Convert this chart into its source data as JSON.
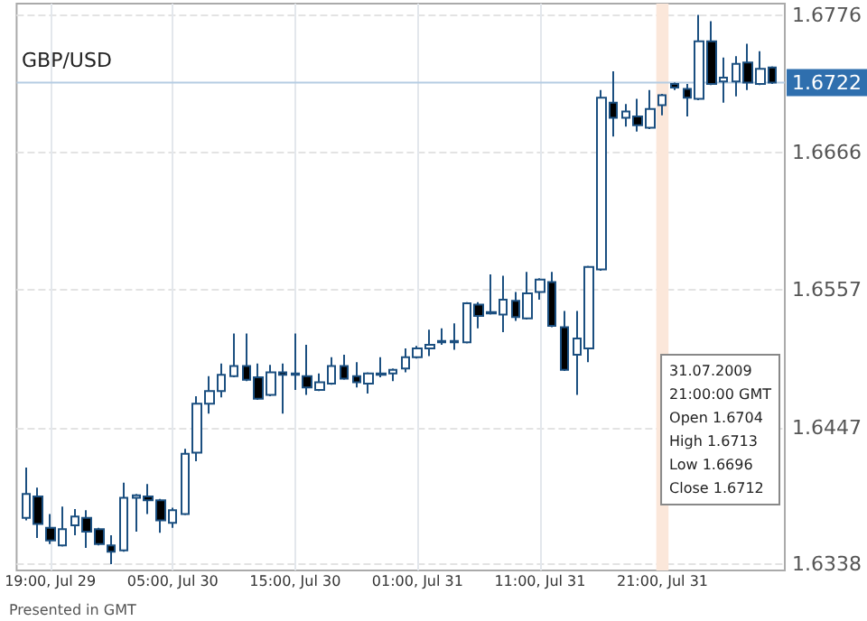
{
  "chart_data": {
    "type": "candlestick",
    "title": "GBP/USD",
    "color": "#1b4f80",
    "x": [
      "2009-07-29T17:00",
      "2009-07-29T18:00",
      "2009-07-29T19:00",
      "2009-07-29T20:00",
      "2009-07-29T21:00",
      "2009-07-29T22:00",
      "2009-07-29T23:00",
      "2009-07-30T00:00",
      "2009-07-30T01:00",
      "2009-07-30T02:00",
      "2009-07-30T03:00",
      "2009-07-30T04:00",
      "2009-07-30T05:00",
      "2009-07-30T06:00",
      "2009-07-30T07:00",
      "2009-07-30T08:00",
      "2009-07-30T09:00",
      "2009-07-30T10:00",
      "2009-07-30T11:00",
      "2009-07-30T12:00",
      "2009-07-30T13:00",
      "2009-07-30T14:00",
      "2009-07-30T15:00",
      "2009-07-30T16:00",
      "2009-07-30T17:00",
      "2009-07-30T18:00",
      "2009-07-30T19:00",
      "2009-07-30T20:00",
      "2009-07-30T21:00",
      "2009-07-30T22:00",
      "2009-07-30T23:00",
      "2009-07-31T00:00",
      "2009-07-31T01:00",
      "2009-07-31T02:00",
      "2009-07-31T03:00",
      "2009-07-31T04:00",
      "2009-07-31T05:00",
      "2009-07-31T06:00",
      "2009-07-31T07:00",
      "2009-07-31T08:00",
      "2009-07-31T09:00",
      "2009-07-31T10:00",
      "2009-07-31T11:00",
      "2009-07-31T12:00",
      "2009-07-31T13:00",
      "2009-07-31T14:00",
      "2009-07-31T15:00",
      "2009-07-31T16:00",
      "2009-07-31T17:00",
      "2009-07-31T18:00",
      "2009-07-31T19:00",
      "2009-07-31T20:00",
      "2009-07-31T21:00",
      "2009-07-31T22:00",
      "2009-07-31T23:00",
      "2009-08-01T00:00",
      "2009-08-01T01:00",
      "2009-08-01T02:00",
      "2009-08-01T03:00",
      "2009-08-01T04:00",
      "2009-08-01T05:00",
      "2009-08-01T06:00"
    ],
    "ohlc": [
      [
        1.6375,
        1.6415,
        1.6373,
        1.6394
      ],
      [
        1.6392,
        1.6399,
        1.6359,
        1.637
      ],
      [
        1.6367,
        1.6378,
        1.6354,
        1.6357
      ],
      [
        1.6353,
        1.6384,
        1.6352,
        1.6366
      ],
      [
        1.6369,
        1.6382,
        1.6361,
        1.6376
      ],
      [
        1.6375,
        1.6381,
        1.6351,
        1.6364
      ],
      [
        1.6366,
        1.6367,
        1.6353,
        1.6354
      ],
      [
        1.6353,
        1.6361,
        1.6338,
        1.6348
      ],
      [
        1.6349,
        1.6403,
        1.6348,
        1.6391
      ],
      [
        1.6391,
        1.6394,
        1.6364,
        1.6393
      ],
      [
        1.6392,
        1.6402,
        1.6378,
        1.6389
      ],
      [
        1.6389,
        1.639,
        1.6363,
        1.6373
      ],
      [
        1.6371,
        1.6383,
        1.6367,
        1.6381
      ],
      [
        1.6378,
        1.643,
        1.6377,
        1.6426
      ],
      [
        1.6427,
        1.6472,
        1.642,
        1.6466
      ],
      [
        1.6466,
        1.6488,
        1.6458,
        1.6476
      ],
      [
        1.6476,
        1.6498,
        1.6471,
        1.6489
      ],
      [
        1.6488,
        1.6522,
        1.6487,
        1.6496
      ],
      [
        1.6496,
        1.6522,
        1.6484,
        1.6485
      ],
      [
        1.6487,
        1.6498,
        1.6469,
        1.647
      ],
      [
        1.6473,
        1.6497,
        1.6472,
        1.6491
      ],
      [
        1.6491,
        1.6498,
        1.6458,
        1.6489
      ],
      [
        1.649,
        1.6522,
        1.6477,
        1.6489
      ],
      [
        1.6488,
        1.6513,
        1.6473,
        1.6479
      ],
      [
        1.6477,
        1.649,
        1.6476,
        1.6483
      ],
      [
        1.6482,
        1.6503,
        1.6481,
        1.6496
      ],
      [
        1.6496,
        1.6505,
        1.6485,
        1.6486
      ],
      [
        1.6488,
        1.6499,
        1.6479,
        1.6483
      ],
      [
        1.6482,
        1.6491,
        1.6474,
        1.649
      ],
      [
        1.6489,
        1.6503,
        1.6487,
        1.649
      ],
      [
        1.649,
        1.6494,
        1.6484,
        1.6493
      ],
      [
        1.6494,
        1.651,
        1.6491,
        1.6503
      ],
      [
        1.6503,
        1.6512,
        1.6502,
        1.651
      ],
      [
        1.651,
        1.6525,
        1.6504,
        1.6513
      ],
      [
        1.6515,
        1.6526,
        1.6513,
        1.6516
      ],
      [
        1.6516,
        1.653,
        1.6509,
        1.6515
      ],
      [
        1.6515,
        1.6547,
        1.6514,
        1.6546
      ],
      [
        1.6545,
        1.6547,
        1.6526,
        1.6536
      ],
      [
        1.6539,
        1.6569,
        1.6537,
        1.6538
      ],
      [
        1.6537,
        1.6568,
        1.6523,
        1.6549
      ],
      [
        1.6548,
        1.6555,
        1.6532,
        1.6535
      ],
      [
        1.6534,
        1.6571,
        1.6533,
        1.6554
      ],
      [
        1.6555,
        1.6566,
        1.6549,
        1.6565
      ],
      [
        1.6563,
        1.6571,
        1.6527,
        1.6528
      ],
      [
        1.6527,
        1.654,
        1.6492,
        1.6493
      ],
      [
        1.6505,
        1.654,
        1.6473,
        1.6518
      ],
      [
        1.651,
        1.6576,
        1.6499,
        1.6575
      ],
      [
        1.6573,
        1.6716,
        1.6572,
        1.671
      ],
      [
        1.6706,
        1.6731,
        1.6679,
        1.6694
      ],
      [
        1.6694,
        1.6705,
        1.6687,
        1.6699
      ],
      [
        1.6695,
        1.6709,
        1.6683,
        1.6688
      ],
      [
        1.6686,
        1.6716,
        1.6685,
        1.6701
      ],
      [
        1.6704,
        1.6713,
        1.6696,
        1.6712
      ],
      [
        1.6721,
        1.6722,
        1.6716,
        1.6718
      ],
      [
        1.6717,
        1.6721,
        1.6695,
        1.671
      ],
      [
        1.6709,
        1.6776,
        1.6708,
        1.6755
      ],
      [
        1.6755,
        1.6771,
        1.672,
        1.6721
      ],
      [
        1.6723,
        1.6742,
        1.6706,
        1.6726
      ],
      [
        1.6723,
        1.6743,
        1.6711,
        1.6737
      ],
      [
        1.6738,
        1.6753,
        1.6716,
        1.6722
      ],
      [
        1.6721,
        1.6747,
        1.672,
        1.6733
      ],
      [
        1.6734,
        1.6735,
        1.6721,
        1.6722
      ]
    ],
    "xlim": [
      "2009-07-29T16:15",
      "2009-08-01T07:00"
    ],
    "xticks": [
      {
        "value": "2009-07-29T19:00",
        "label": "19:00, Jul 29"
      },
      {
        "value": "2009-07-30T05:00",
        "label": "05:00, Jul 30"
      },
      {
        "value": "2009-07-30T15:00",
        "label": "15:00, Jul 30"
      },
      {
        "value": "2009-07-31T01:00",
        "label": "01:00, Jul 31"
      },
      {
        "value": "2009-07-31T11:00",
        "label": "11:00, Jul 31"
      },
      {
        "value": "2009-07-31T21:00",
        "label": "21:00, Jul 31"
      }
    ],
    "ylim": [
      1.6333,
      1.6785
    ],
    "yticks": [
      1.6338,
      1.6447,
      1.6557,
      1.6666,
      1.6776
    ],
    "grid": true,
    "ref_lines": [
      {
        "axis": "y",
        "value": 1.6722,
        "label": "1.6722",
        "color": "#b5cde3"
      }
    ],
    "bands": [
      {
        "axis": "x",
        "from": "2009-07-31T20:30",
        "to": "2009-07-31T21:30",
        "color": "#fbe7da"
      }
    ],
    "annotations": [
      "31.07.2009",
      "21:00:00 GMT",
      "Open 1.6704",
      "High 1.6713",
      "Low 1.6696",
      "Close 1.6712",
      "Presented in GMT"
    ]
  }
}
